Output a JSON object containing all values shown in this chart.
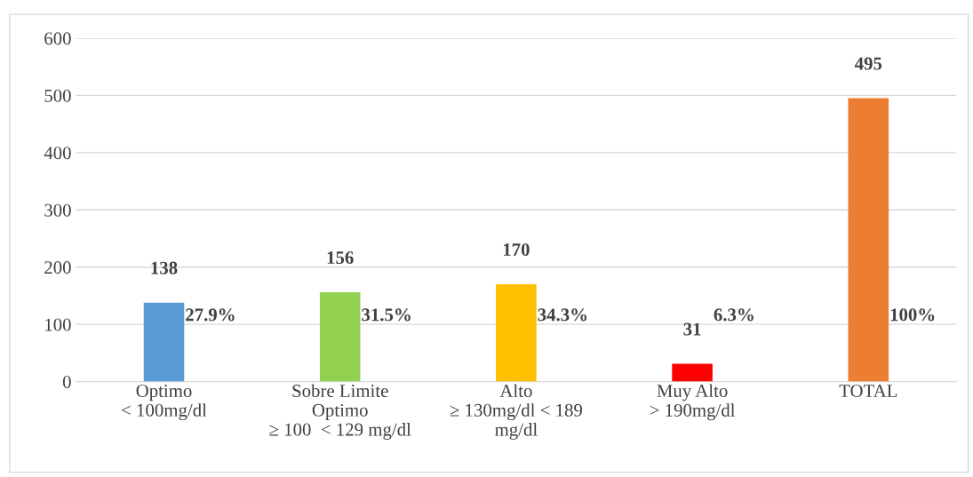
{
  "chart_data": {
    "type": "bar",
    "categories": [
      "Optimo\n< 100mg/dl",
      "Sobre Limite\nOptimo\n≥ 100  < 129 mg/dl",
      "Alto\n≥ 130mg/dl < 189\nmg/dl",
      "Muy Alto\n> 190mg/dl",
      "TOTAL"
    ],
    "values": [
      138,
      156,
      170,
      31,
      495
    ],
    "colors": [
      "#5b9bd5",
      "#92d050",
      "#ffc000",
      "#ff0000",
      "#ed7d31"
    ],
    "data_labels": true,
    "annotations": [
      "27.9%",
      "31.5%",
      "34.3%",
      "6.3%",
      "100%"
    ],
    "ylim": [
      0,
      600
    ],
    "yticks": [
      0,
      100,
      200,
      300,
      400,
      500,
      600
    ],
    "grid": "y",
    "legend": false
  }
}
